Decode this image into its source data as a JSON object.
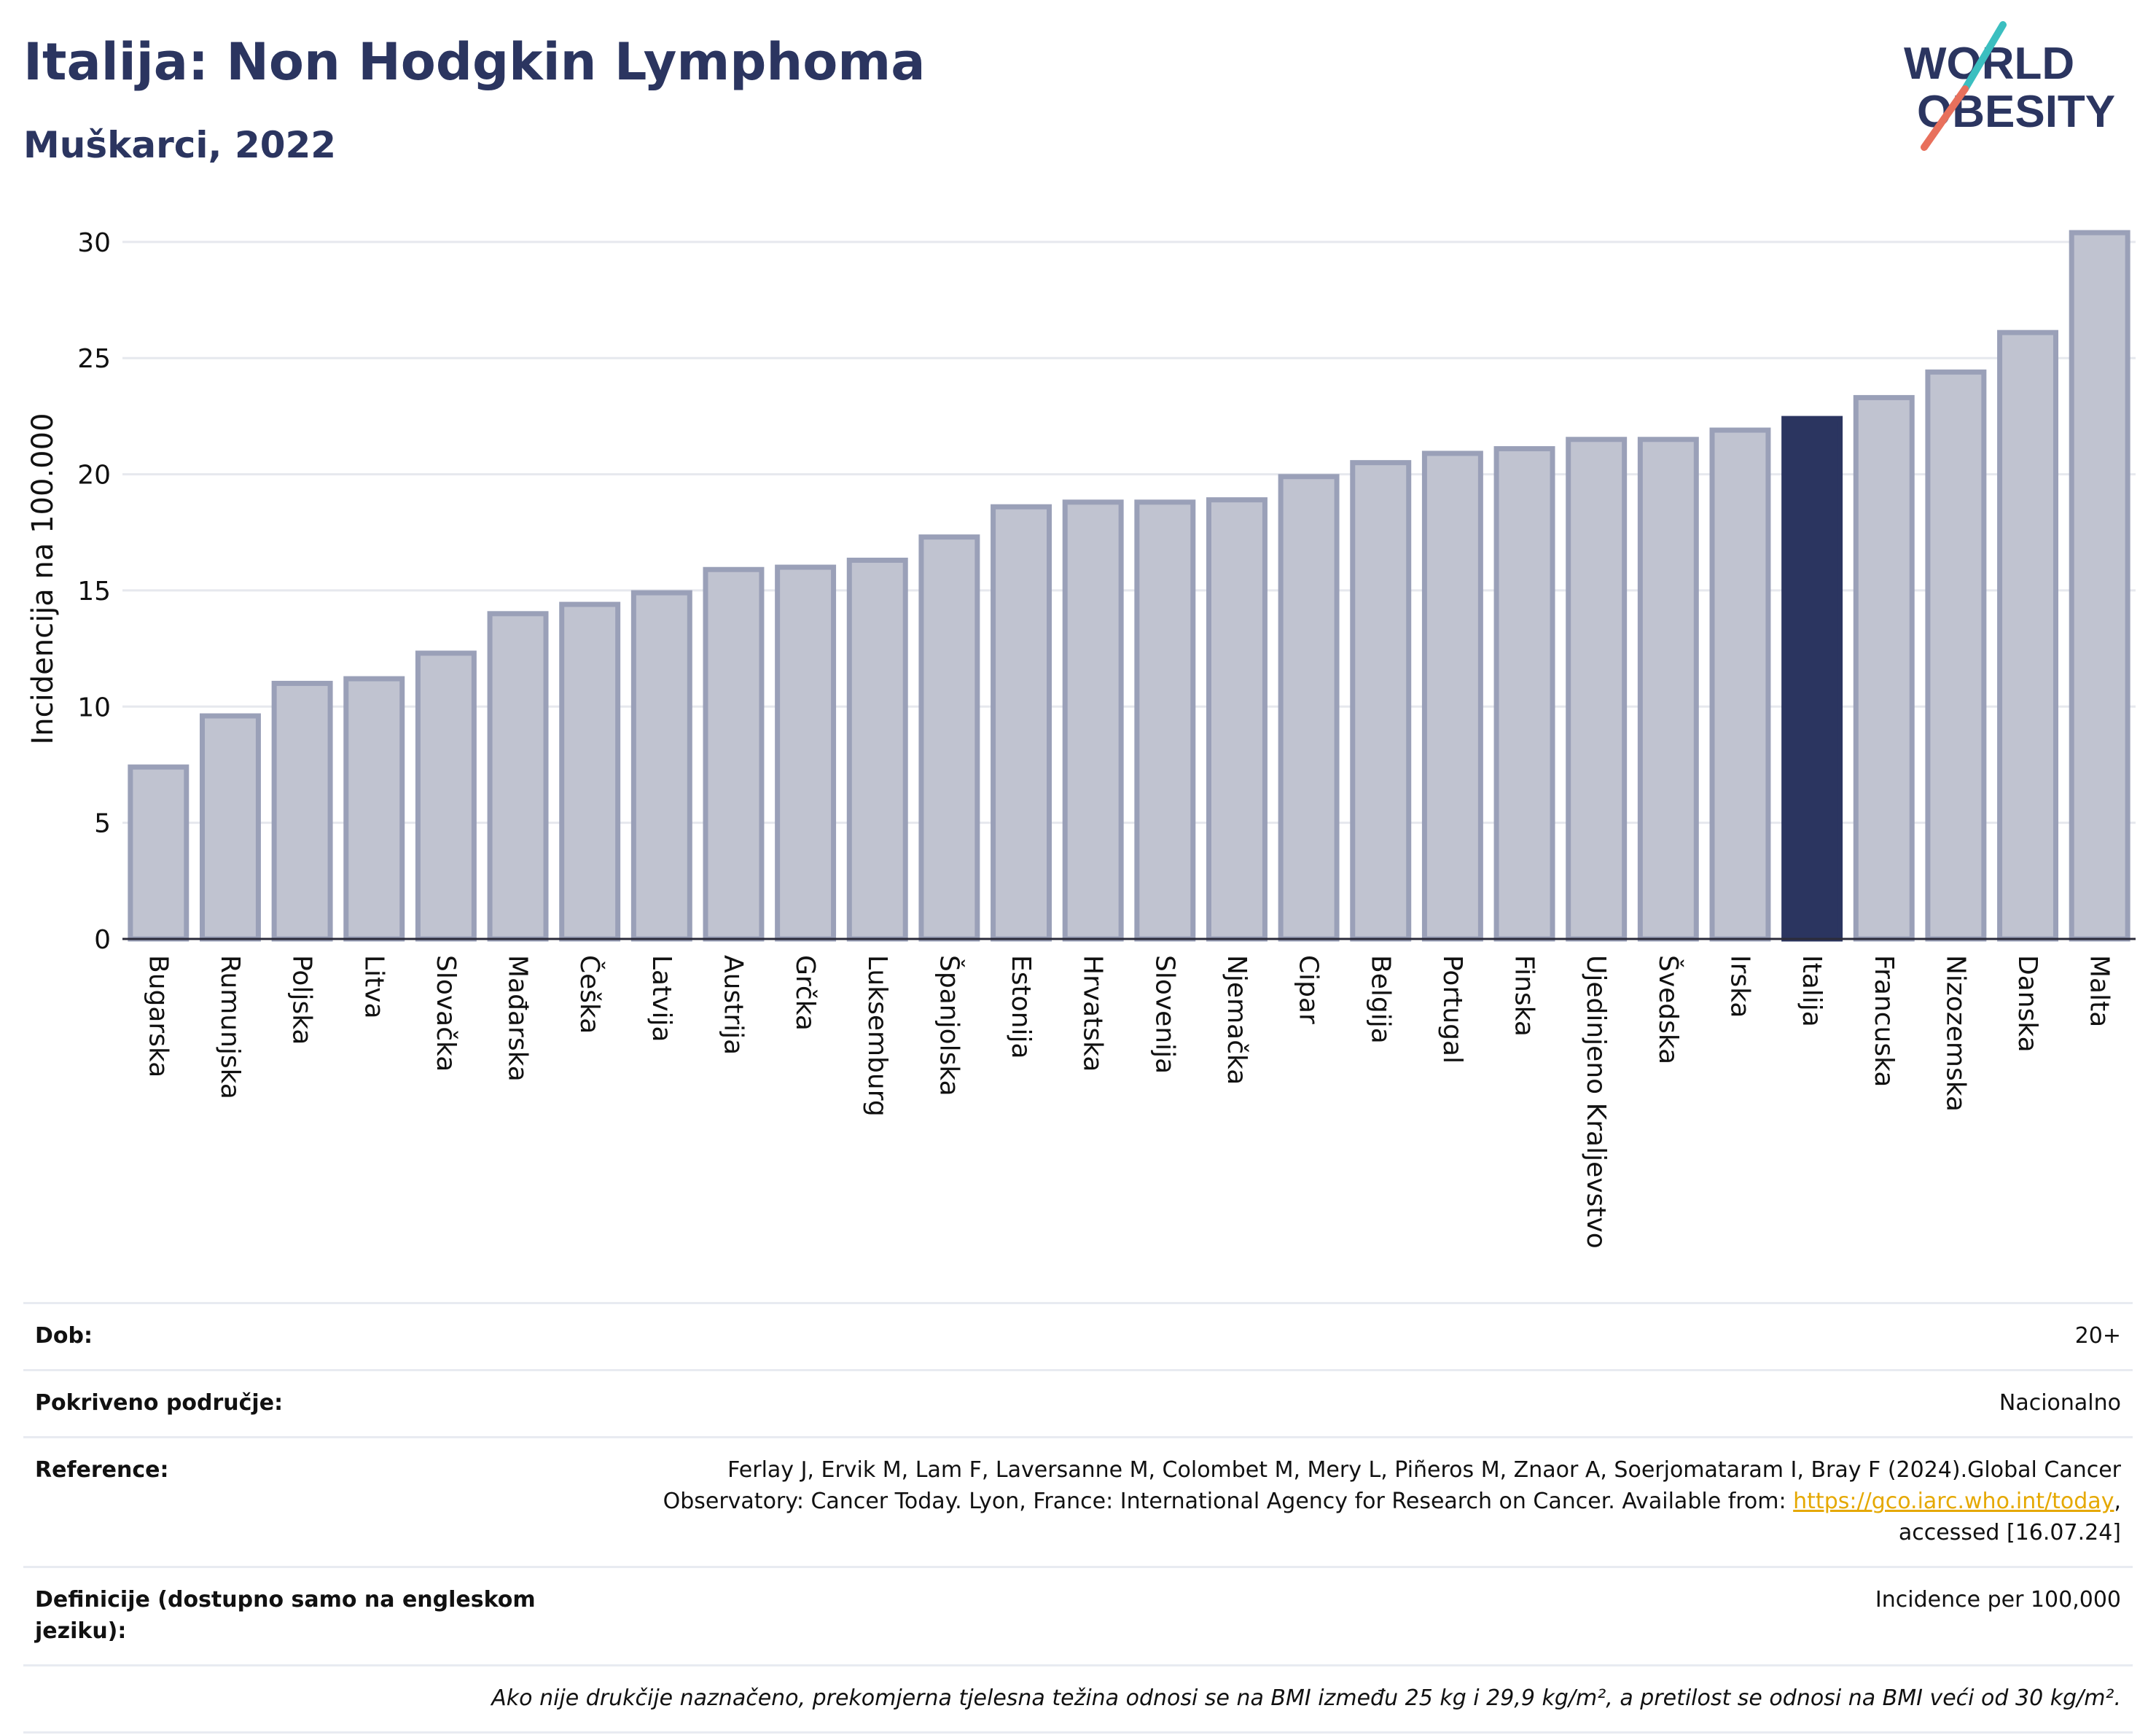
{
  "header": {
    "title": "Italija: Non Hodgkin Lymphoma",
    "subtitle": "Muškarci, 2022"
  },
  "logo": {
    "line1": "WORLD",
    "line2": "OBESITY"
  },
  "colors": {
    "bar": "#c0c3d0",
    "bar_border": "#9aa0b8",
    "highlight": "#2b3560",
    "title": "#2b3560",
    "grid": "#e6e8ee",
    "logo_teal": "#3bbfc0",
    "logo_coral": "#e8705c"
  },
  "chart_data": {
    "type": "bar",
    "title": "Italija: Non Hodgkin Lymphoma",
    "subtitle": "Muškarci, 2022",
    "xlabel": "",
    "ylabel": "Incidencija na 100.000",
    "ylim": [
      0,
      31
    ],
    "yticks": [
      0,
      5,
      10,
      15,
      20,
      25,
      30
    ],
    "grid": true,
    "highlight": "Italija",
    "categories": [
      "Bugarska",
      "Rumunjska",
      "Poljska",
      "Litva",
      "Slovačka",
      "Mađarska",
      "Češka",
      "Latvija",
      "Austrija",
      "Grčka",
      "Luksemburg",
      "Španjolska",
      "Estonija",
      "Hrvatska",
      "Slovenija",
      "Njemačka",
      "Cipar",
      "Belgija",
      "Portugal",
      "Finska",
      "Ujedinjeno Kraljevstvo",
      "Švedska",
      "Irska",
      "Italija",
      "Francuska",
      "Nizozemska",
      "Danska",
      "Malta"
    ],
    "values": [
      7.4,
      9.6,
      11.0,
      11.2,
      12.3,
      14.0,
      14.4,
      14.9,
      15.9,
      16.0,
      16.3,
      17.3,
      18.6,
      18.8,
      18.8,
      18.9,
      19.9,
      20.5,
      20.9,
      21.1,
      21.5,
      21.5,
      21.9,
      22.4,
      23.3,
      24.4,
      26.1,
      30.4
    ]
  },
  "info": {
    "age_label": "Dob:",
    "age_value": "20+",
    "coverage_label": "Pokriveno područje:",
    "coverage_value": "Nacionalno",
    "reference_label": "Reference:",
    "reference_text": "Ferlay J, Ervik M, Lam F, Laversanne M, Colombet M, Mery L, Piñeros M, Znaor A, Soerjomataram I, Bray F (2024).Global Cancer Observatory: Cancer Today. Lyon, France: International Agency for Research on Cancer. Available from: ",
    "reference_link": "https://gco.iarc.who.int/today",
    "reference_tail": ", accessed [16.07.24]",
    "definitions_label": "Definicije (dostupno samo na engleskom jeziku):",
    "definitions_value": "Incidence per 100,000",
    "note": "Ako nije drukčije naznačeno, prekomjerna tjelesna težina odnosi se na BMI između 25 kg i 29,9 kg/m², a pretilost se odnosi na BMI veći od 30 kg/m²."
  }
}
